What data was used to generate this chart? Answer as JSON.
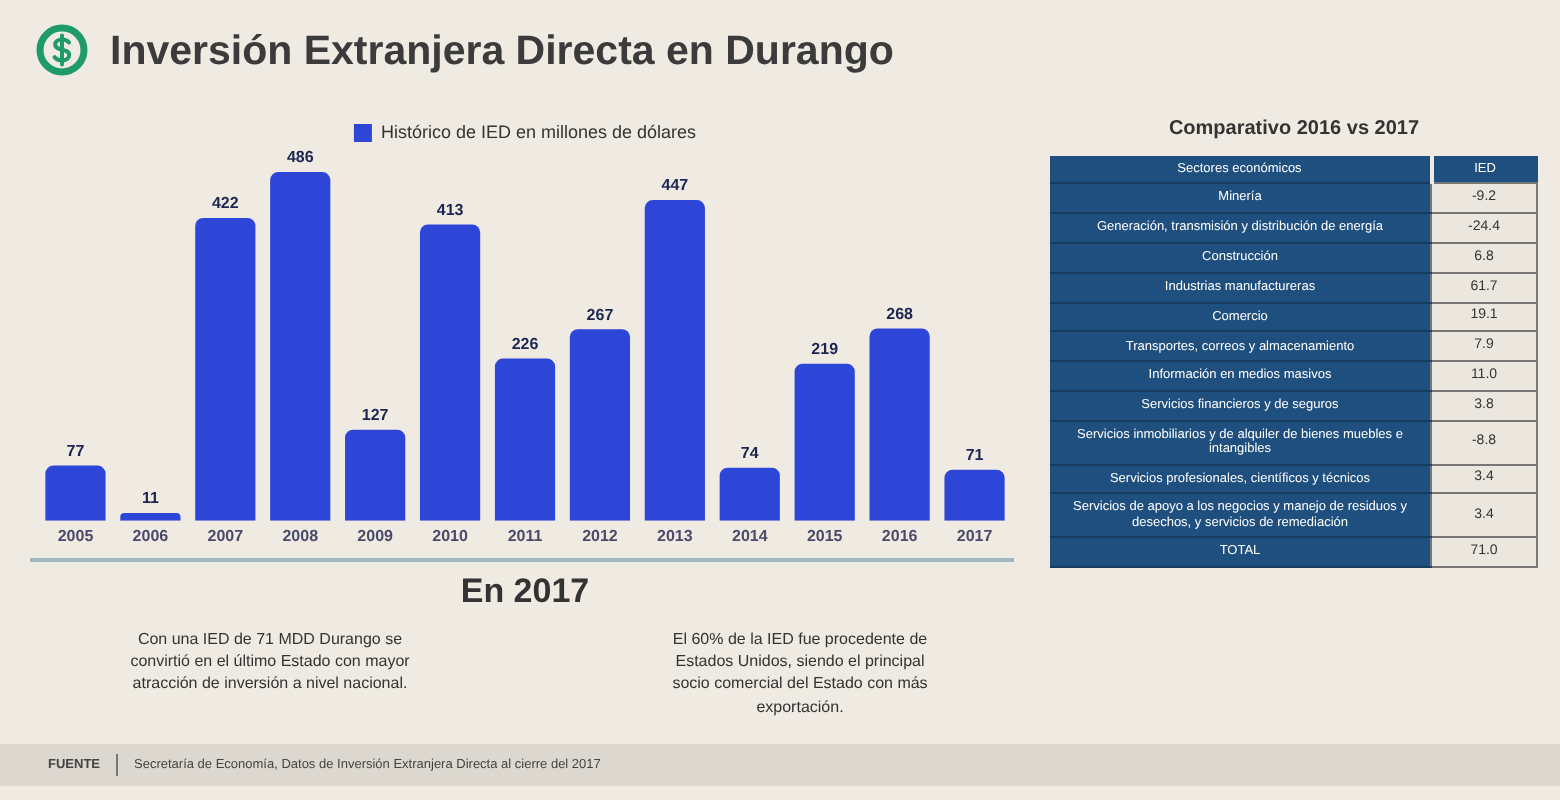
{
  "chart_data": [
    {
      "type": "bar",
      "title": "Inversión Extranjera Directa en Durango",
      "categories": [
        "2005",
        "2006",
        "2007",
        "2008",
        "2009",
        "2010",
        "2011",
        "2012",
        "2013",
        "2014",
        "2015",
        "2016",
        "2017"
      ],
      "series": [
        {
          "name": "Histórico de IED en millones de dólares",
          "color": "#2e46d8",
          "values": [
            77,
            11,
            422,
            486,
            127,
            413,
            226,
            267,
            447,
            74,
            219,
            268,
            71
          ]
        }
      ],
      "data_labels": true,
      "legend": "top",
      "grid": false,
      "tick_labels": "x",
      "annotations": [
        "FUENTE",
        "Secretaría de Economía, Datos de Inversión Extranjera Directa al cierre del 2017"
      ]
    },
    {
      "type": "other",
      "title": "Comparativo 2016 vs 2017",
      "xlabel": "Sectores económicos",
      "ylabel": "IED",
      "categories": [
        "Minería",
        "Generación, transmisión y distribución de energía",
        "Construcción",
        "Industrias manufactureras",
        "Comercio",
        "Transportes, correos y almacenamiento",
        "Información en medios masivos",
        "Servicios financieros y de seguros",
        "Servicios inmobiliarios y de alquiler de bienes muebles e intangibles",
        "Servicios profesionales, científicos y técnicos",
        "Servicios de apoyo a los negocios y manejo de residuos y desechos, y servicios de remediación",
        "TOTAL"
      ],
      "values": [
        -9.2,
        -24.4,
        6.8,
        61.7,
        19.1,
        7.9,
        11.0,
        3.8,
        -8.8,
        3.4,
        3.4,
        71.0
      ],
      "value_labels": [
        "-9.2",
        "-24.4",
        "6.8",
        "61.7",
        "19.1",
        "7.9",
        "11.0",
        "3.8",
        "-8.8",
        "3.4",
        "3.4",
        "71.0"
      ]
    },
    {
      "type": "other",
      "title": "En 2017",
      "annotations": [
        "Con una IED de 71 MDD Durango se convirtió en el último Estado con mayor atracción de inversión a nivel nacional.",
        "El 60% de la IED fue procedente de Estados Unidos, siendo el principal socio comercial del Estado con más exportación."
      ]
    }
  ]
}
